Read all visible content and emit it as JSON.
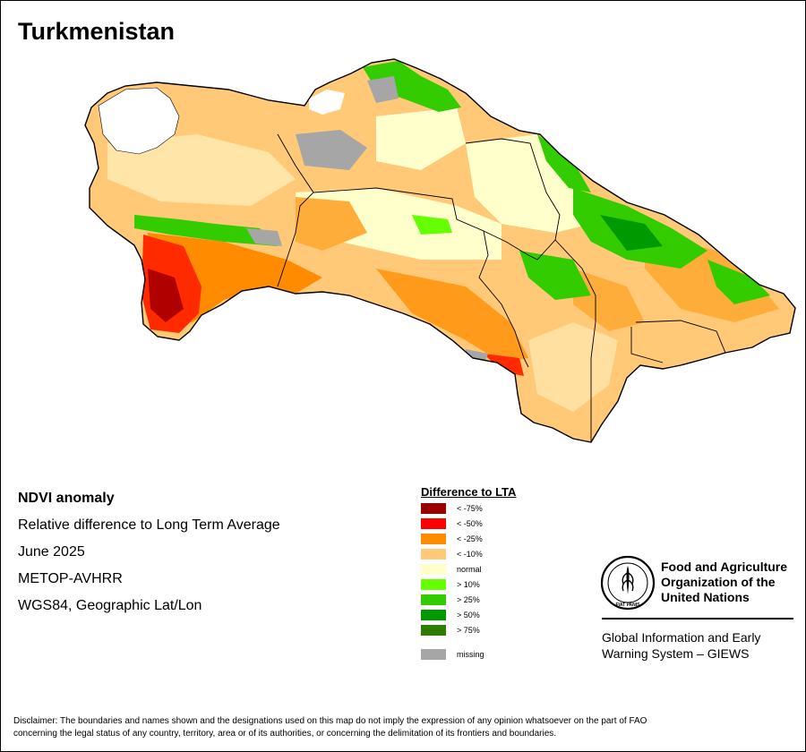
{
  "title": "Turkmenistan",
  "info": {
    "product": "NDVI anomaly",
    "description": "Relative difference to Long Term Average",
    "period": "June 2025",
    "sensor": "METOP-AVHRR",
    "projection": "WGS84, Geographic Lat/Lon"
  },
  "legend": {
    "title": "Difference to LTA",
    "items": [
      {
        "label": "< -75%",
        "color": "#990000"
      },
      {
        "label": "< -50%",
        "color": "#ff0000"
      },
      {
        "label": "< -25%",
        "color": "#ff8c00"
      },
      {
        "label": "< -10%",
        "color": "#ffc978"
      },
      {
        "label": "normal",
        "color": "#ffffcc"
      },
      {
        "label": "> 10%",
        "color": "#66ff00"
      },
      {
        "label": "> 25%",
        "color": "#33cc00"
      },
      {
        "label": "> 50%",
        "color": "#009900"
      },
      {
        "label": "> 75%",
        "color": "#2e7d00"
      },
      {
        "label": "missing",
        "color": "#a6a6a6"
      }
    ]
  },
  "organization": {
    "emblem_text": "FAO",
    "motto": "FIAT PANIS",
    "name_line1": "Food and Agriculture",
    "name_line2": "Organization of the",
    "name_line3": "United Nations",
    "system_line1": "Global Information and Early",
    "system_line2": "Warning System – GIEWS"
  },
  "disclaimer": {
    "line1": "Disclaimer: The boundaries and names shown and the designations used on this map do not imply the expression of any opinion whatsoever on the part of FAO",
    "line2": "concerning the legal status of any country, territory, area or of its authorities, or concerning the delimitation of its frontiers and boundaries."
  },
  "colors": {
    "border": "#000000",
    "caspian": "#ffffff"
  }
}
